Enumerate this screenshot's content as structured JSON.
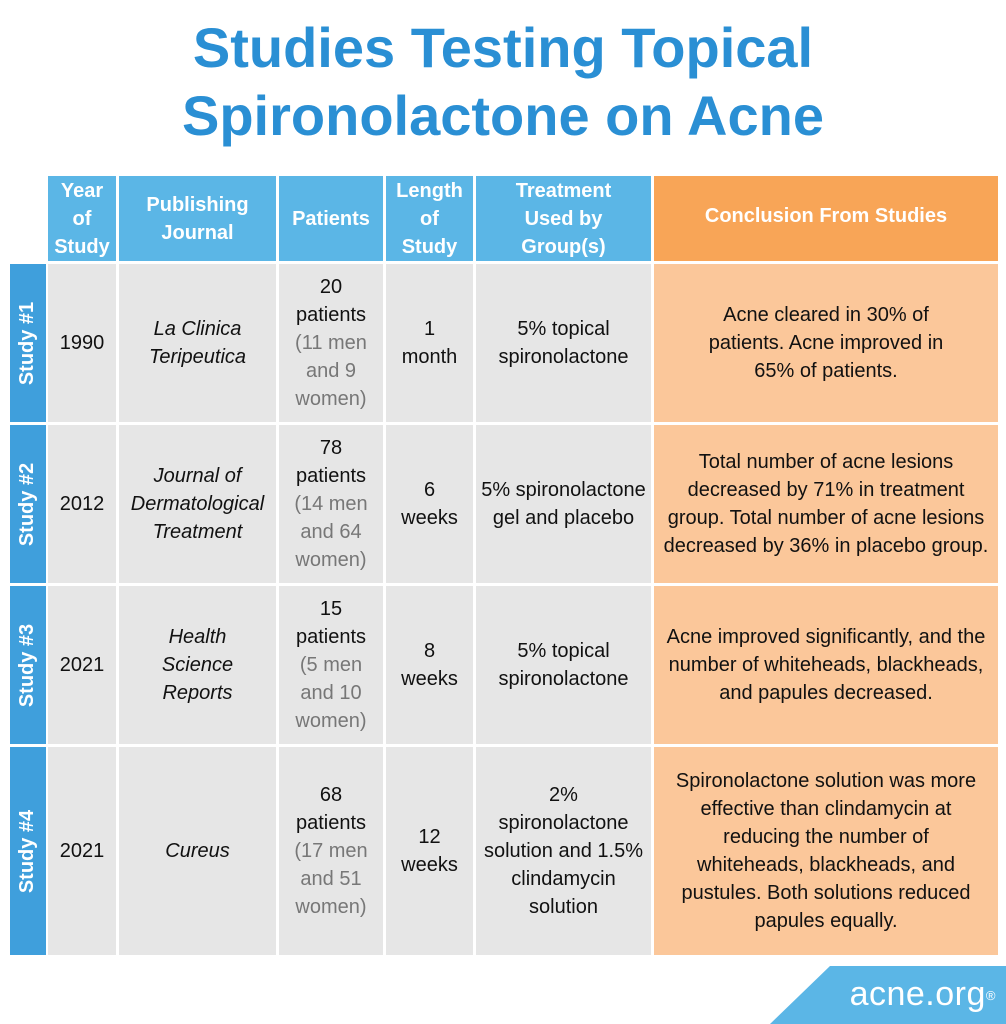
{
  "title": {
    "line1": "Studies Testing Topical",
    "line2": "Spironolactone on Acne"
  },
  "headers": {
    "year": "Year of Study",
    "journal": "Publishing Journal",
    "patients": "Patients",
    "length": "Length of Study",
    "treatment": "Treatment Used by Group(s)",
    "conclusion": "Conclusion From Studies"
  },
  "studies": [
    {
      "label": "Study #1",
      "year": "1990",
      "journal": "La Clinica Teripeutica",
      "patients_main": "20 patients",
      "patients_detail": "(11 men and 9 women)",
      "length": "1 month",
      "treatment": "5% topical spironolactone",
      "conclusion": "Acne cleared in 30% of patients. Acne improved in 65% of patients."
    },
    {
      "label": "Study #2",
      "year": "2012",
      "journal": "Journal of Dermatological Treatment",
      "patients_main": "78 patients",
      "patients_detail": "(14 men and 64 women)",
      "length": "6 weeks",
      "treatment": "5% spironolactone gel and placebo",
      "conclusion": "Total number of acne lesions decreased by 71% in treatment group. Total number of acne lesions decreased by 36% in placebo group."
    },
    {
      "label": "Study #3",
      "year": "2021",
      "journal": "Health Science Reports",
      "patients_main": "15 patients",
      "patients_detail": "(5 men and 10 women)",
      "length": "8 weeks",
      "treatment": "5% topical spironolactone",
      "conclusion": "Acne improved significantly, and the number of whiteheads, blackheads, and papules decreased."
    },
    {
      "label": "Study #4",
      "year": "2021",
      "journal": "Cureus",
      "patients_main": "68 patients",
      "patients_detail": "(17 men and 51 women)",
      "length": "12 weeks",
      "treatment": "2% spironolactone solution and 1.5% clindamycin solution",
      "conclusion": "Spironolactone solution was more effective than clindamycin at reducing the number of whiteheads, blackheads, and pustules. Both solutions reduced papules equally."
    }
  ],
  "brand": {
    "name": "acne.org",
    "mark": "®"
  },
  "colors": {
    "title": "#2a8fd4",
    "header_blue": "#5bb6e6",
    "side_blue": "#3f9fdc",
    "header_orange": "#f8a557",
    "conclusion_peach": "#fbc79a",
    "cell_gray": "#e6e6e6"
  }
}
